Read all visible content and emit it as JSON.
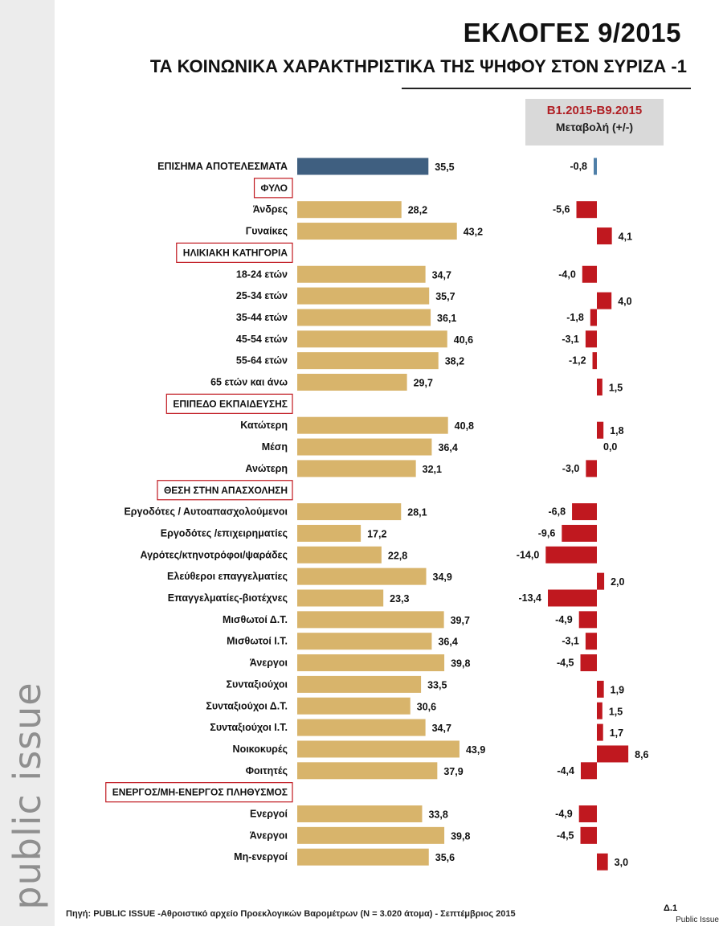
{
  "title": "ΕΚΛΟΓΕΣ 9/2015",
  "subtitle": "ΤΑ ΚΟΙΝΩΝΙΚΑ ΧΑΡΑΚΤΗΡΙΣΤΙΚΑ ΤΗΣ ΨΗΦΟΥ ΣΤΟΝ ΣΥΡΙΖΑ -1",
  "change_header": {
    "period": "B1.2015-B9.2015",
    "label": "Μεταβολή (+/-)"
  },
  "brand": "public issue",
  "footer": "Πηγή:  PUBLIC ISSUE -Αθροιστικό αρχείο Προεκλογικών Βαρομέτρων (N = 3.020 άτομα)  - Σεπτέμβριος 2015",
  "page_number": "Δ.1",
  "credit": "Public Issue",
  "colors": {
    "official_bar": "#3f5f80",
    "vote_bar": "#d8b46b",
    "change_bar": "#c0181f",
    "official_change_bar": "#4f7fa8",
    "section_border": "#c0181f"
  },
  "chart_data": {
    "type": "bar",
    "series": [
      {
        "name": "",
        "role": "vote_share"
      },
      {
        "name": "Μεταβολή (+/-)",
        "role": "change"
      }
    ],
    "rows": [
      {
        "kind": "item",
        "label": "ΕΠΙΣΗΜΑ ΑΠΟΤΕΛΕΣΜΑΤΑ",
        "value": 35.5,
        "value_label": "35,5",
        "change": -0.8,
        "change_label": "-0,8",
        "official": true
      },
      {
        "kind": "section",
        "label": "ΦΥΛΟ"
      },
      {
        "kind": "item",
        "label": "Άνδρες",
        "value": 28.2,
        "value_label": "28,2",
        "change": -5.6,
        "change_label": "-5,6"
      },
      {
        "kind": "item",
        "label": "Γυναίκες",
        "value": 43.2,
        "value_label": "43,2",
        "change": 4.1,
        "change_label": "4,1"
      },
      {
        "kind": "section",
        "label": "ΗΛΙΚΙΑΚΗ ΚΑΤΗΓΟΡΙΑ"
      },
      {
        "kind": "item",
        "label": "18-24 ετών",
        "value": 34.7,
        "value_label": "34,7",
        "change": -4.0,
        "change_label": "-4,0"
      },
      {
        "kind": "item",
        "label": "25-34 ετών",
        "value": 35.7,
        "value_label": "35,7",
        "change": 4.0,
        "change_label": "4,0"
      },
      {
        "kind": "item",
        "label": "35-44 ετών",
        "value": 36.1,
        "value_label": "36,1",
        "change": -1.8,
        "change_label": "-1,8"
      },
      {
        "kind": "item",
        "label": "45-54 ετών",
        "value": 40.6,
        "value_label": "40,6",
        "change": -3.1,
        "change_label": "-3,1"
      },
      {
        "kind": "item",
        "label": "55-64 ετών",
        "value": 38.2,
        "value_label": "38,2",
        "change": -1.2,
        "change_label": "-1,2"
      },
      {
        "kind": "item",
        "label": "65 ετών και άνω",
        "value": 29.7,
        "value_label": "29,7",
        "change": 1.5,
        "change_label": "1,5"
      },
      {
        "kind": "section",
        "label": "ΕΠΙΠΕΔΟ ΕΚΠΑΙΔΕΥΣΗΣ"
      },
      {
        "kind": "item",
        "label": "Κατώτερη",
        "value": 40.8,
        "value_label": "40,8",
        "change": 1.8,
        "change_label": "1,8"
      },
      {
        "kind": "item",
        "label": "Μέση",
        "value": 36.4,
        "value_label": "36,4",
        "change": 0.0,
        "change_label": "0,0"
      },
      {
        "kind": "item",
        "label": "Ανώτερη",
        "value": 32.1,
        "value_label": "32,1",
        "change": -3.0,
        "change_label": "-3,0"
      },
      {
        "kind": "section",
        "label": "ΘΕΣΗ ΣΤΗΝ ΑΠΑΣΧΟΛΗΣΗ"
      },
      {
        "kind": "item",
        "label": "Εργοδότες / Αυτοαπασχολούμενοι",
        "value": 28.1,
        "value_label": "28,1",
        "change": -6.8,
        "change_label": "-6,8"
      },
      {
        "kind": "item",
        "label": "Εργοδότες /επιχειρηματίες",
        "value": 17.2,
        "value_label": "17,2",
        "change": -9.6,
        "change_label": "-9,6"
      },
      {
        "kind": "item",
        "label": "Αγρότες/κτηνοτρόφοι/ψαράδες",
        "value": 22.8,
        "value_label": "22,8",
        "change": -14.0,
        "change_label": "-14,0"
      },
      {
        "kind": "item",
        "label": "Ελεύθεροι επαγγελματίες",
        "value": 34.9,
        "value_label": "34,9",
        "change": 2.0,
        "change_label": "2,0"
      },
      {
        "kind": "item",
        "label": "Επαγγελματίες-βιοτέχνες",
        "value": 23.3,
        "value_label": "23,3",
        "change": -13.4,
        "change_label": "-13,4"
      },
      {
        "kind": "item",
        "label": "Μισθωτοί Δ.Τ.",
        "value": 39.7,
        "value_label": "39,7",
        "change": -4.9,
        "change_label": "-4,9"
      },
      {
        "kind": "item",
        "label": "Μισθωτοί Ι.Τ.",
        "value": 36.4,
        "value_label": "36,4",
        "change": -3.1,
        "change_label": "-3,1"
      },
      {
        "kind": "item",
        "label": "Άνεργοι",
        "value": 39.8,
        "value_label": "39,8",
        "change": -4.5,
        "change_label": "-4,5"
      },
      {
        "kind": "item",
        "label": "Συνταξιούχοι",
        "value": 33.5,
        "value_label": "33,5",
        "change": 1.9,
        "change_label": "1,9"
      },
      {
        "kind": "item",
        "label": "Συνταξιούχοι Δ.Τ.",
        "value": 30.6,
        "value_label": "30,6",
        "change": 1.5,
        "change_label": "1,5"
      },
      {
        "kind": "item",
        "label": "Συνταξιούχοι Ι.Τ.",
        "value": 34.7,
        "value_label": "34,7",
        "change": 1.7,
        "change_label": "1,7"
      },
      {
        "kind": "item",
        "label": "Νοικοκυρές",
        "value": 43.9,
        "value_label": "43,9",
        "change": 8.6,
        "change_label": "8,6"
      },
      {
        "kind": "item",
        "label": "Φοιτητές",
        "value": 37.9,
        "value_label": "37,9",
        "change": -4.4,
        "change_label": "-4,4"
      },
      {
        "kind": "section",
        "label": "ΕΝΕΡΓΟΣ/ΜΗ-ΕΝΕΡΓΟΣ ΠΛΗΘΥΣΜΟΣ"
      },
      {
        "kind": "item",
        "label": "Ενεργοί",
        "value": 33.8,
        "value_label": "33,8",
        "change": -4.9,
        "change_label": "-4,9"
      },
      {
        "kind": "item",
        "label": "Άνεργοι",
        "value": 39.8,
        "value_label": "39,8",
        "change": -4.5,
        "change_label": "-4,5"
      },
      {
        "kind": "item",
        "label": "Μη-ενεργοί",
        "value": 35.6,
        "value_label": "35,6",
        "change": 3.0,
        "change_label": "3,0"
      }
    ]
  }
}
